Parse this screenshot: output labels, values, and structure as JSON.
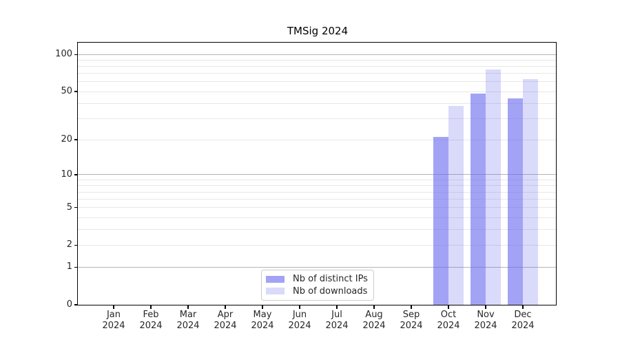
{
  "chart_data": {
    "type": "bar",
    "title": "TMSig 2024",
    "categories": [
      "Jan",
      "Feb",
      "Mar",
      "Apr",
      "May",
      "Jun",
      "Jul",
      "Aug",
      "Sep",
      "Oct",
      "Nov",
      "Dec"
    ],
    "year": "2024",
    "series": [
      {
        "name": "Nb of distinct IPs",
        "color": "#6666ee",
        "alpha": 0.6,
        "values": [
          0,
          0,
          0,
          0,
          0,
          0,
          0,
          0,
          0,
          21,
          48,
          44
        ]
      },
      {
        "name": "Nb of downloads",
        "color": "#6666ee",
        "alpha": 0.24,
        "values": [
          0,
          0,
          0,
          0,
          0,
          0,
          0,
          0,
          0,
          38,
          76,
          63
        ]
      }
    ],
    "xlabel": "",
    "ylabel": "",
    "yscale": "log1p",
    "ylim": [
      0,
      125
    ],
    "ytick_values": [
      100,
      50,
      20,
      10,
      5,
      2,
      1,
      0
    ],
    "ytick_labels": [
      "100",
      "50",
      "20",
      "10",
      "5",
      "2",
      "1",
      "0"
    ],
    "major_grid_values": [
      1,
      10,
      100
    ],
    "minor_grid_values": [
      2,
      3,
      4,
      5,
      6,
      7,
      8,
      9,
      20,
      30,
      40,
      50,
      60,
      70,
      80,
      90
    ],
    "grid": "horizontal",
    "legend_position": "lower center"
  },
  "colors": {
    "major_grid": "#b3b3b3",
    "minor_grid": "#e7e7e7",
    "axis": "#000000",
    "tick_text": "#262626"
  }
}
